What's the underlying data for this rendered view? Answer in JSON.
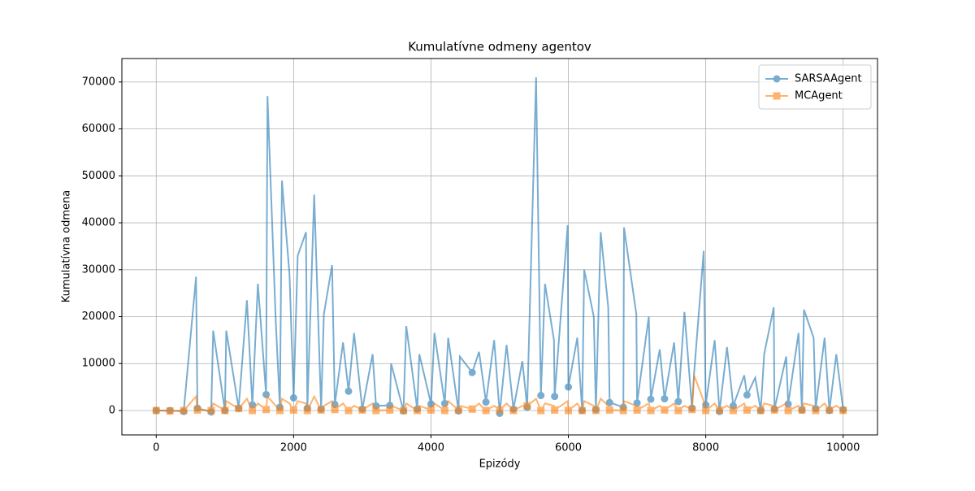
{
  "chart_data": {
    "type": "line",
    "title": "Kumulatívne odmeny agentov",
    "x_label": "Epizódy",
    "y_label": "Kumulatívna odmena",
    "x": [
      0,
      200,
      400,
      580,
      600,
      800,
      830,
      1000,
      1020,
      1200,
      1320,
      1400,
      1480,
      1600,
      1620,
      1740,
      1800,
      1830,
      1940,
      2000,
      2060,
      2180,
      2200,
      2300,
      2400,
      2440,
      2560,
      2600,
      2720,
      2800,
      2880,
      3000,
      3150,
      3200,
      3400,
      3420,
      3600,
      3640,
      3800,
      3830,
      4000,
      4050,
      4200,
      4250,
      4400,
      4420,
      4600,
      4700,
      4800,
      4920,
      5000,
      5100,
      5200,
      5330,
      5400,
      5530,
      5600,
      5660,
      5790,
      5800,
      5990,
      6000,
      6130,
      6200,
      6230,
      6370,
      6400,
      6470,
      6580,
      6600,
      6800,
      6810,
      6990,
      7000,
      7170,
      7200,
      7330,
      7400,
      7540,
      7600,
      7690,
      7800,
      7830,
      7970,
      8000,
      8130,
      8200,
      8310,
      8400,
      8560,
      8600,
      8720,
      8800,
      8850,
      8990,
      9000,
      9170,
      9200,
      9350,
      9400,
      9430,
      9570,
      9600,
      9730,
      9800,
      9900,
      10000
    ],
    "series": [
      {
        "name": "SARSAAgent",
        "color": "#1f77b4",
        "marker": "circle",
        "values": [
          0,
          0,
          -200,
          28500,
          500,
          -300,
          17000,
          0,
          17000,
          500,
          23500,
          1200,
          27000,
          3400,
          67000,
          19000,
          700,
          49000,
          29000,
          2700,
          33000,
          38000,
          500,
          46000,
          300,
          20500,
          31000,
          1300,
          14500,
          4100,
          16500,
          300,
          12000,
          1000,
          1100,
          10000,
          -100,
          18000,
          300,
          12000,
          1400,
          16500,
          1500,
          15500,
          -100,
          11500,
          8100,
          12500,
          1800,
          15000,
          -600,
          14000,
          300,
          10500,
          700,
          71000,
          3200,
          27000,
          15000,
          3000,
          39500,
          5000,
          15500,
          0,
          30000,
          20000,
          200,
          38000,
          22000,
          1700,
          700,
          39000,
          20500,
          1600,
          20000,
          2400,
          13000,
          2500,
          14500,
          1900,
          21000,
          500,
          8000,
          34000,
          1200,
          15000,
          -200,
          13500,
          1000,
          7500,
          3300,
          7000,
          0,
          12000,
          22000,
          300,
          11500,
          1400,
          16500,
          100,
          21500,
          15500,
          400,
          15500,
          0,
          12000,
          200
        ]
      },
      {
        "name": "MCAgent",
        "color": "#ff7f0e",
        "marker": "square",
        "values": [
          0,
          -100,
          0,
          3000,
          100,
          0,
          1500,
          0,
          2000,
          400,
          2500,
          0,
          1500,
          200,
          3000,
          1000,
          0,
          2500,
          1500,
          100,
          2000,
          1500,
          0,
          3000,
          100,
          1000,
          2000,
          200,
          1500,
          0,
          1000,
          100,
          1500,
          0,
          100,
          1000,
          0,
          1500,
          0,
          1000,
          100,
          1500,
          0,
          2000,
          100,
          1000,
          300,
          1500,
          0,
          1000,
          100,
          1500,
          0,
          1000,
          1000,
          2500,
          0,
          1500,
          1000,
          100,
          2000,
          0,
          1500,
          0,
          2000,
          1000,
          0,
          2500,
          1000,
          100,
          0,
          2000,
          1000,
          100,
          1500,
          0,
          1000,
          100,
          1500,
          0,
          1000,
          200,
          7500,
          2000,
          0,
          1500,
          100,
          1000,
          0,
          1500,
          100,
          1000,
          0,
          1500,
          1000,
          100,
          1500,
          0,
          1000,
          100,
          1500,
          1000,
          0,
          1500,
          100,
          1000,
          0
        ]
      }
    ],
    "marker_every": 200,
    "xlim": [
      -500,
      10500
    ],
    "xticks": [
      0,
      2000,
      4000,
      6000,
      8000,
      10000
    ],
    "ylim": [
      -5200,
      75000
    ],
    "yticks": [
      0,
      10000,
      20000,
      30000,
      40000,
      50000,
      60000,
      70000
    ],
    "grid": true,
    "legend": "upper right"
  }
}
